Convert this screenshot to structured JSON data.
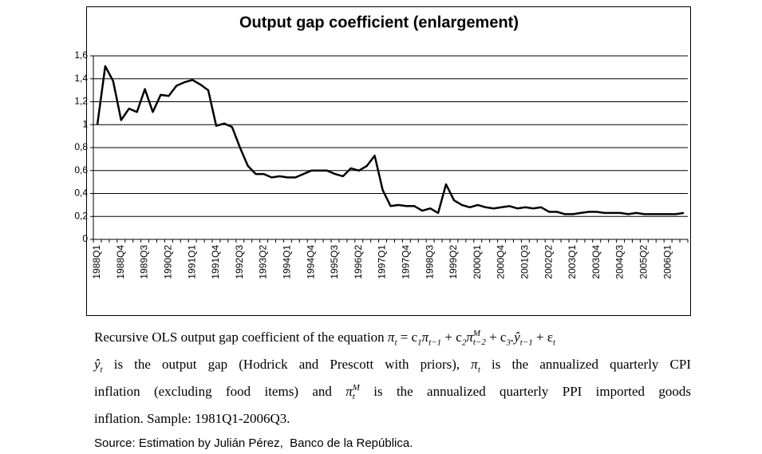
{
  "chart_data": {
    "type": "line",
    "title": "Output gap coefficient (enlargement)",
    "categories": [
      "1988Q1",
      null,
      null,
      "1988Q4",
      null,
      null,
      "1989Q3",
      null,
      null,
      "1990Q2",
      null,
      null,
      "1991Q1",
      null,
      null,
      "1991Q4",
      null,
      null,
      "1992Q3",
      null,
      null,
      "1993Q2",
      null,
      null,
      "1994Q1",
      null,
      null,
      "1994Q4",
      null,
      null,
      "1995Q3",
      null,
      null,
      "1996Q2",
      null,
      null,
      "1997Q1",
      null,
      null,
      "1997Q4",
      null,
      null,
      "1998Q3",
      null,
      null,
      "1999Q2",
      null,
      null,
      "2000Q1",
      null,
      null,
      "2000Q4",
      null,
      null,
      "2001Q3",
      null,
      null,
      "2002Q2",
      null,
      null,
      "2003Q1",
      null,
      null,
      "2003Q4",
      null,
      null,
      "2004Q3",
      null,
      null,
      "2005Q2",
      null,
      null,
      "2006Q1",
      null,
      null
    ],
    "values": [
      1.0,
      1.51,
      1.38,
      1.04,
      1.14,
      1.11,
      1.31,
      1.11,
      1.26,
      1.25,
      1.34,
      1.37,
      1.39,
      1.35,
      1.3,
      0.99,
      1.01,
      0.98,
      0.8,
      0.64,
      0.57,
      0.57,
      0.54,
      0.55,
      0.54,
      0.54,
      0.57,
      0.6,
      0.6,
      0.6,
      0.57,
      0.55,
      0.62,
      0.6,
      0.64,
      0.73,
      0.43,
      0.29,
      0.3,
      0.29,
      0.29,
      0.25,
      0.27,
      0.23,
      0.48,
      0.34,
      0.3,
      0.28,
      0.3,
      0.28,
      0.27,
      0.28,
      0.29,
      0.27,
      0.28,
      0.27,
      0.28,
      0.24,
      0.24,
      0.22,
      0.22,
      0.23,
      0.24,
      0.24,
      0.23,
      0.23,
      0.23,
      0.22,
      0.23,
      0.22,
      0.22,
      0.22,
      0.22,
      0.22,
      0.23
    ],
    "color": "#000000",
    "ylim": [
      0,
      1.6
    ],
    "yticks": [
      0,
      {
        "value": 0.2,
        "label": "0,2"
      },
      {
        "value": 0.4,
        "label": "0,4"
      },
      {
        "value": 0.6,
        "label": "0,6"
      },
      {
        "value": 0.8,
        "label": "0,8"
      },
      1,
      {
        "value": 1.2,
        "label": "1,2"
      },
      {
        "value": 1.4,
        "label": "1,4"
      },
      {
        "value": 1.6,
        "label": "1,6"
      }
    ],
    "grid": true
  },
  "caption": {
    "lines": [
      [
        {
          "text": "Recursive OLS output gap coefficient of the equation "
        },
        {
          "base": "π",
          "sub": "t"
        },
        {
          "text": " = c"
        },
        {
          "sub": "1"
        },
        {
          "base": "π",
          "sub": "t−1"
        },
        {
          "text": " + c"
        },
        {
          "sub": "2"
        },
        {
          "base": "π",
          "sup": "M",
          "sub": "t−2"
        },
        {
          "text": " + c"
        },
        {
          "sub": "3"
        },
        {
          "base": ".ŷ",
          "sub": "t−1"
        },
        {
          "text": " + ε"
        },
        {
          "sub": "t"
        }
      ],
      [
        {
          "base": "ŷ",
          "sub": "t"
        },
        {
          "text": " is the output gap (Hodrick and Prescott with priors), "
        },
        {
          "base": "π",
          "sub": "t"
        },
        {
          "text": " is the annualized quarterly CPI"
        }
      ],
      [
        {
          "text": "inflation (excluding food items) and "
        },
        {
          "base": "π",
          "sup": "M",
          "sub": "t"
        },
        {
          "text": " is the annualized quarterly PPI imported goods"
        }
      ],
      [
        {
          "text": "inflation. Sample: 1981Q1-2006Q3."
        }
      ]
    ],
    "source": "Source: Estimation by Julián Pérez,  Banco de la República."
  }
}
